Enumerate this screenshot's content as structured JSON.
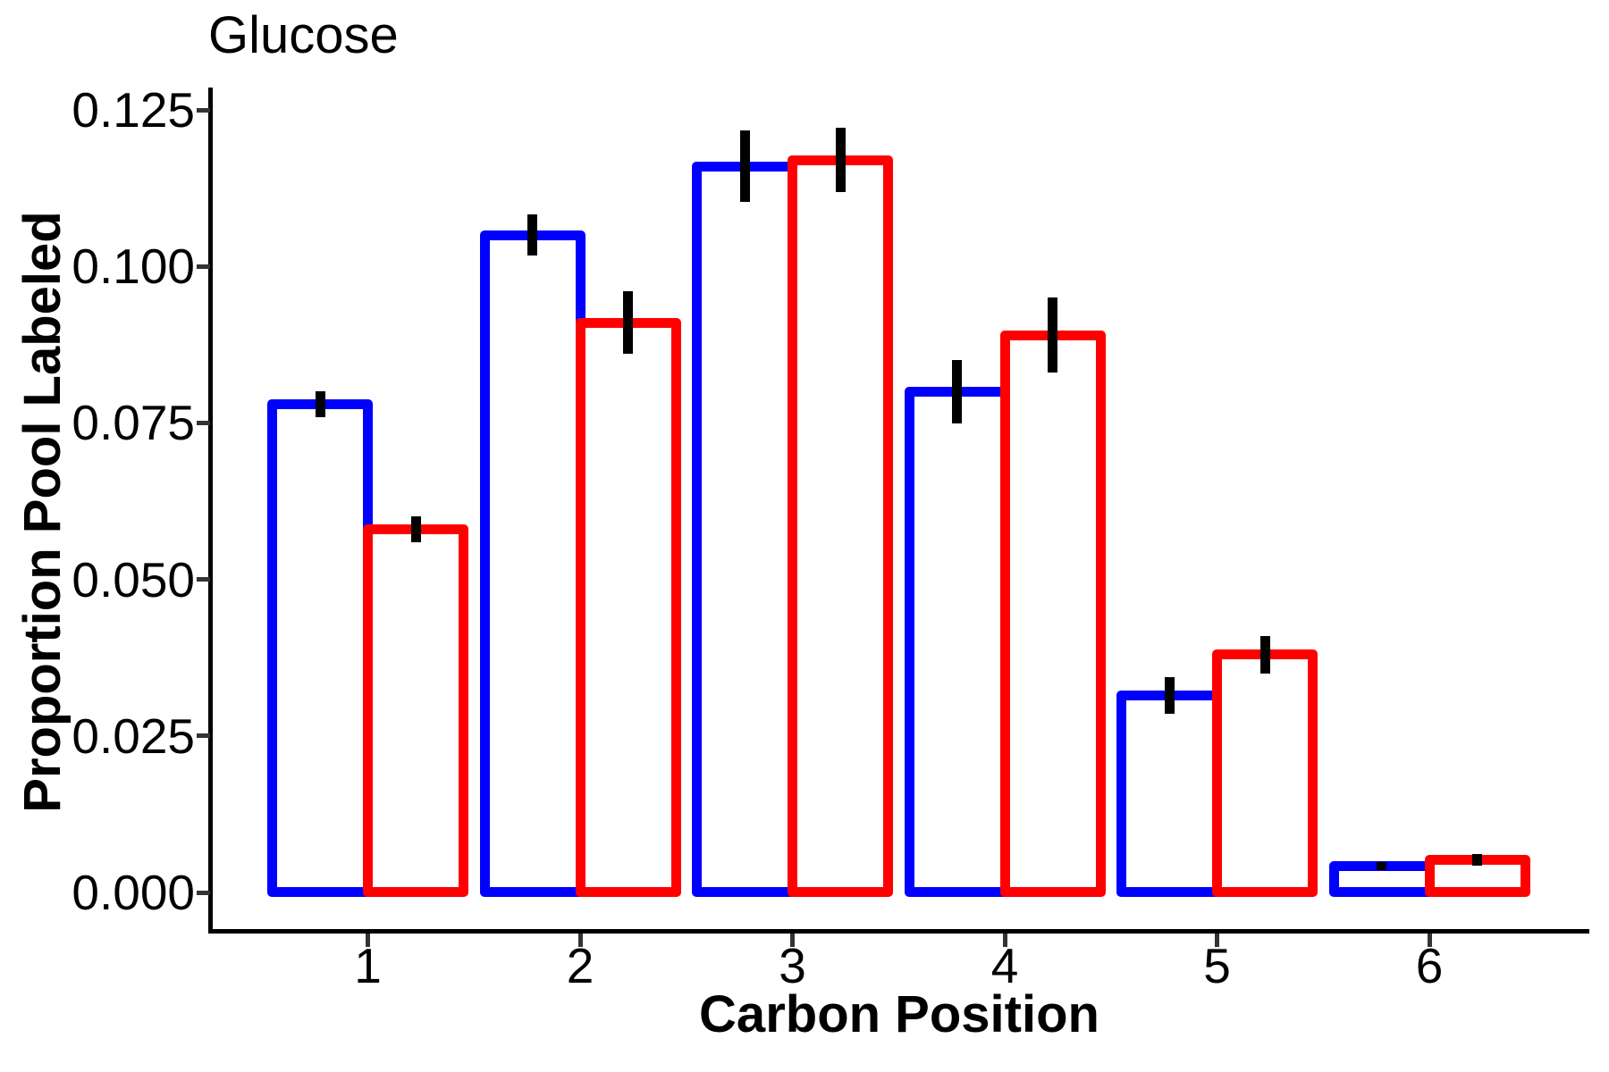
{
  "chart_data": {
    "type": "bar",
    "title": "Glucose",
    "xlabel": "Carbon Position",
    "ylabel": "Proportion Pool Labeled",
    "categories": [
      "1",
      "2",
      "3",
      "4",
      "5",
      "6"
    ],
    "series": [
      {
        "name": "blue",
        "color": "#0000FF",
        "values": [
          0.078,
          0.105,
          0.116,
          0.08,
          0.0315,
          0.0042
        ],
        "errors": [
          0.0021,
          0.0033,
          0.0057,
          0.0051,
          0.0029,
          0.0007
        ]
      },
      {
        "name": "red",
        "color": "#FF0000",
        "values": [
          0.058,
          0.091,
          0.117,
          0.089,
          0.038,
          0.0052
        ],
        "errors": [
          0.0021,
          0.005,
          0.0052,
          0.006,
          0.003,
          0.0009
        ]
      }
    ],
    "error_bar_color": "#000000",
    "bar_fill": "#FFFFFF",
    "y_ticks": [
      "0.000",
      "0.025",
      "0.050",
      "0.075",
      "0.100",
      "0.125"
    ],
    "ylim": [
      0,
      0.125
    ],
    "grid": "off",
    "legend": "none"
  }
}
